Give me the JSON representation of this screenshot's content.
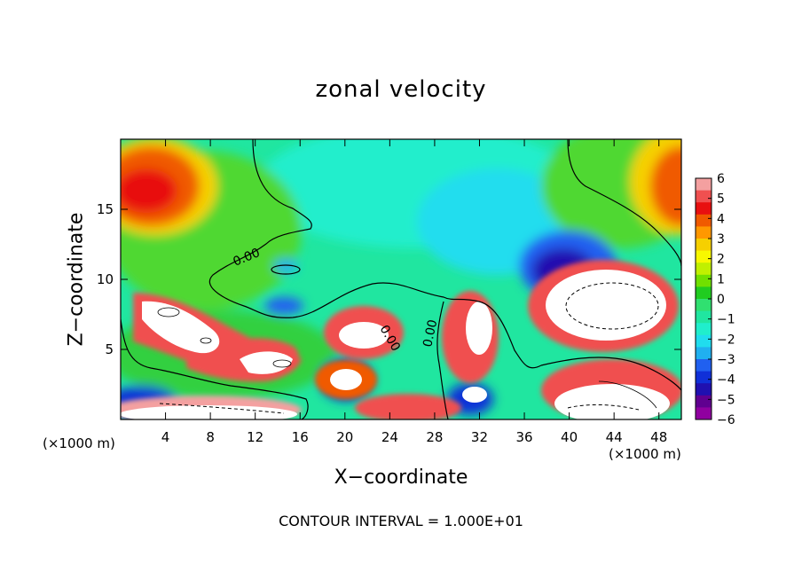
{
  "chart_data": {
    "type": "heatmap",
    "title": "zonal velocity",
    "xlabel": "X−coordinate",
    "ylabel": "Z−coordinate",
    "x_unit_label": "(×1000 m)",
    "z_unit_label": "(×1000 m)",
    "xlim": [
      0,
      50
    ],
    "ylim": [
      0,
      20
    ],
    "x_ticks": [
      4,
      8,
      12,
      16,
      20,
      24,
      28,
      32,
      36,
      40,
      44,
      48
    ],
    "y_ticks": [
      5,
      10,
      15
    ],
    "colorbar": {
      "ticks": [
        "6",
        "5",
        "4",
        "3",
        "2",
        "1",
        "0",
        "−1",
        "−2",
        "−3",
        "−4",
        "−5",
        "−6"
      ],
      "colors": [
        "#f4a0a0",
        "#f05050",
        "#e81010",
        "#f05a00",
        "#ff9800",
        "#f6d000",
        "#f8f800",
        "#c0f000",
        "#70e000",
        "#20cc20",
        "#30e070",
        "#20e6a0",
        "#20eecc",
        "#20ddee",
        "#20b0f0",
        "#2060f0",
        "#1030d8",
        "#2010b0",
        "#600090",
        "#9000a0"
      ]
    },
    "contour_labels": [
      "0.00",
      "0.00",
      "0.00"
    ],
    "contour_interval_text": "CONTOUR INTERVAL = 1.000E+01"
  }
}
